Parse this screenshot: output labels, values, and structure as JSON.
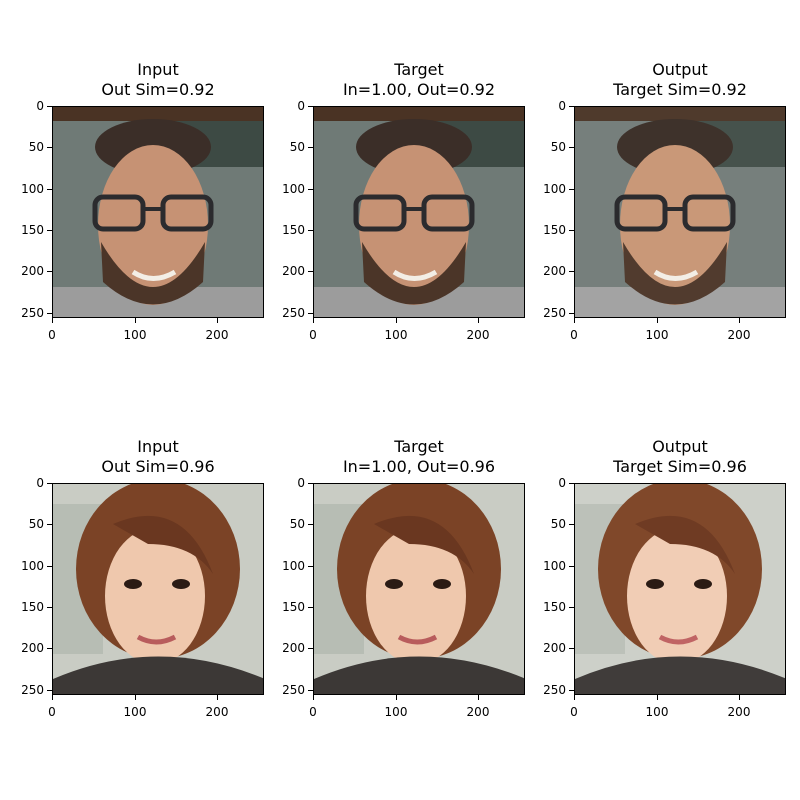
{
  "grid": {
    "rows": [
      {
        "panels": [
          {
            "title_line1": "Input",
            "title_line2": "Out Sim=0.92",
            "subject": "bearded-man-with-glasses"
          },
          {
            "title_line1": "Target",
            "title_line2": "In=1.00, Out=0.92",
            "subject": "bearded-man-with-glasses"
          },
          {
            "title_line1": "Output",
            "title_line2": "Target Sim=0.92",
            "subject": "bearded-man-with-glasses"
          }
        ]
      },
      {
        "panels": [
          {
            "title_line1": "Input",
            "title_line2": "Out Sim=0.96",
            "subject": "woman-with-bob-haircut"
          },
          {
            "title_line1": "Target",
            "title_line2": "In=1.00, Out=0.96",
            "subject": "woman-with-bob-haircut"
          },
          {
            "title_line1": "Output",
            "title_line2": "Target Sim=0.96",
            "subject": "woman-with-bob-haircut"
          }
        ]
      }
    ]
  },
  "axes": {
    "x_ticks": [
      "0",
      "100",
      "200"
    ],
    "y_ticks": [
      "0",
      "50",
      "100",
      "150",
      "200",
      "250"
    ]
  },
  "colors": {
    "man_background": "#6f7a76",
    "man_skin": "#c69274",
    "man_hair": "#3b2e28",
    "woman_background": "#c9ccc4",
    "woman_skin": "#efc8ad",
    "woman_hair": "#7b4326"
  }
}
